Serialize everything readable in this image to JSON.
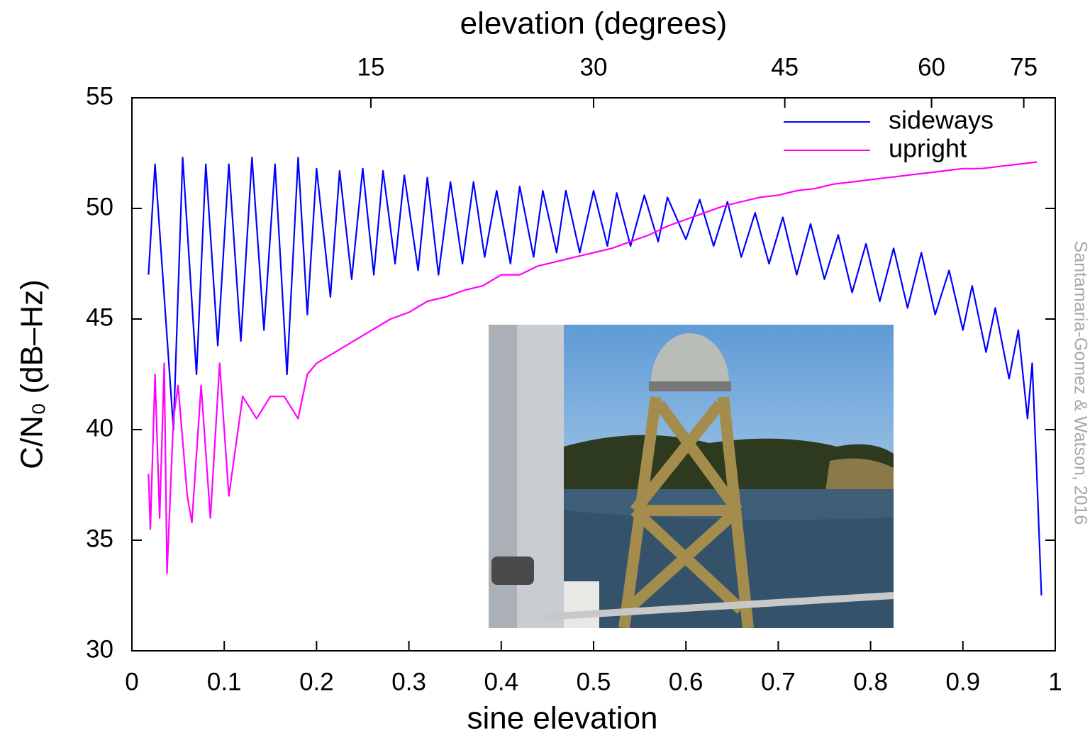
{
  "chart_data": {
    "type": "line",
    "title": "elevation (degrees)",
    "xlabel": "sine elevation",
    "ylabel": "C/N₀ (dB–Hz)",
    "annotation": "Santamaria-Gomez & Watson, 2016",
    "xlim": [
      0,
      1
    ],
    "ylim": [
      30,
      55
    ],
    "xticks": [
      0,
      0.1,
      0.2,
      0.3,
      0.4,
      0.5,
      0.6,
      0.7,
      0.8,
      0.9,
      1
    ],
    "yticks": [
      30,
      35,
      40,
      45,
      50,
      55
    ],
    "x2ticks": [
      {
        "value": 0.2588,
        "label": "15"
      },
      {
        "value": 0.5,
        "label": "30"
      },
      {
        "value": 0.7071,
        "label": "45"
      },
      {
        "value": 0.866,
        "label": "60"
      },
      {
        "value": 0.9659,
        "label": "75"
      }
    ],
    "grid": false,
    "legend": "upper right",
    "series": [
      {
        "name": "sideways",
        "color": "#0000ff",
        "x": [
          0.018,
          0.025,
          0.045,
          0.055,
          0.07,
          0.08,
          0.093,
          0.105,
          0.118,
          0.13,
          0.143,
          0.155,
          0.168,
          0.18,
          0.19,
          0.2,
          0.215,
          0.225,
          0.238,
          0.25,
          0.262,
          0.272,
          0.285,
          0.295,
          0.31,
          0.32,
          0.332,
          0.345,
          0.358,
          0.37,
          0.382,
          0.395,
          0.41,
          0.42,
          0.435,
          0.445,
          0.46,
          0.47,
          0.485,
          0.5,
          0.515,
          0.525,
          0.54,
          0.555,
          0.57,
          0.58,
          0.6,
          0.615,
          0.63,
          0.645,
          0.66,
          0.675,
          0.69,
          0.705,
          0.72,
          0.735,
          0.75,
          0.765,
          0.78,
          0.795,
          0.81,
          0.825,
          0.84,
          0.855,
          0.87,
          0.885,
          0.9,
          0.91,
          0.925,
          0.935,
          0.95,
          0.96,
          0.97,
          0.975,
          0.98,
          0.985
        ],
        "values": [
          47,
          52,
          40,
          52.3,
          42.5,
          52,
          43.8,
          52,
          44,
          52.3,
          44.5,
          52,
          42.5,
          52.3,
          45.2,
          51.8,
          46,
          51.7,
          46.8,
          51.8,
          47,
          51.7,
          47.5,
          51.5,
          47.2,
          51.4,
          47,
          51.2,
          47.5,
          51.2,
          47.8,
          50.8,
          47.5,
          51,
          47.8,
          50.8,
          48,
          50.8,
          48,
          50.8,
          48.3,
          50.7,
          48.3,
          50.6,
          48.5,
          50.5,
          48.6,
          50.4,
          48.3,
          50.3,
          47.8,
          49.8,
          47.5,
          49.6,
          47,
          49.3,
          46.8,
          48.8,
          46.2,
          48.4,
          45.8,
          48.2,
          45.5,
          48,
          45.2,
          47.2,
          44.5,
          46.5,
          43.5,
          45.5,
          42.3,
          44.5,
          40.5,
          43,
          38,
          32.5
        ]
      },
      {
        "name": "upright",
        "color": "#ff00ff",
        "x": [
          0.018,
          0.02,
          0.025,
          0.03,
          0.035,
          0.038,
          0.045,
          0.05,
          0.06,
          0.065,
          0.075,
          0.085,
          0.095,
          0.1,
          0.105,
          0.12,
          0.135,
          0.15,
          0.165,
          0.18,
          0.19,
          0.2,
          0.22,
          0.24,
          0.26,
          0.28,
          0.3,
          0.32,
          0.34,
          0.36,
          0.38,
          0.4,
          0.42,
          0.44,
          0.46,
          0.48,
          0.5,
          0.52,
          0.54,
          0.56,
          0.58,
          0.6,
          0.62,
          0.64,
          0.66,
          0.68,
          0.7,
          0.72,
          0.74,
          0.76,
          0.78,
          0.8,
          0.82,
          0.84,
          0.86,
          0.88,
          0.9,
          0.92,
          0.94,
          0.96,
          0.98
        ],
        "values": [
          38,
          35.5,
          42.5,
          36,
          43,
          33.5,
          40.5,
          42,
          37,
          35.8,
          42,
          36,
          43,
          40,
          37,
          41.5,
          40.5,
          41.5,
          41.5,
          40.5,
          42.5,
          43,
          43.5,
          44,
          44.5,
          45,
          45.3,
          45.8,
          46,
          46.3,
          46.5,
          47,
          47,
          47.4,
          47.6,
          47.8,
          48,
          48.2,
          48.5,
          48.8,
          49.2,
          49.5,
          49.8,
          50.1,
          50.3,
          50.5,
          50.6,
          50.8,
          50.9,
          51.1,
          51.2,
          51.3,
          51.4,
          51.5,
          51.6,
          51.7,
          51.8,
          51.8,
          51.9,
          52,
          52.1
        ]
      }
    ]
  }
}
